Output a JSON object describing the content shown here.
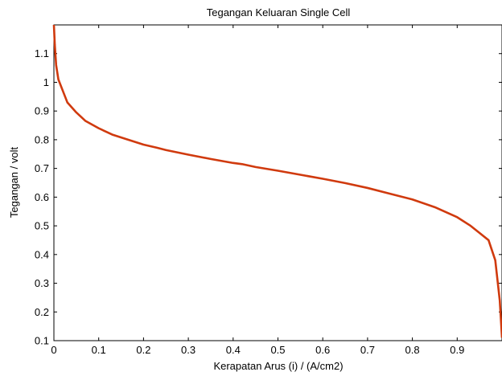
{
  "chart_data": {
    "type": "line",
    "title": "Tegangan Keluaran Single Cell",
    "xlabel": "Kerapatan Arus (i) / (A/cm2)",
    "ylabel": "Tegangan / volt",
    "xlim": [
      0,
      1
    ],
    "ylim": [
      0.1,
      1.2
    ],
    "xticks": [
      0,
      0.1,
      0.2,
      0.3,
      0.4,
      0.5,
      0.6,
      0.7,
      0.8,
      0.9
    ],
    "xtick_labels": [
      "0",
      "0.1",
      "0.2",
      "0.3",
      "0.4",
      "0.5",
      "0.6",
      "0.7",
      "0.8",
      "0.9"
    ],
    "yticks": [
      0.1,
      0.2,
      0.3,
      0.4,
      0.5,
      0.6,
      0.7,
      0.8,
      0.9,
      1.0,
      1.1
    ],
    "ytick_labels": [
      "0.1",
      "0.2",
      "0.3",
      "0.4",
      "0.5",
      "0.6",
      "0.7",
      "0.8",
      "0.9",
      "1",
      "1.1"
    ],
    "grid": false,
    "line_color": "#d03a0e",
    "series": [
      {
        "x": [
          0,
          0.002,
          0.005,
          0.01,
          0.02,
          0.03,
          0.05,
          0.07,
          0.1,
          0.13,
          0.16,
          0.2,
          0.23,
          0.25,
          0.3,
          0.35,
          0.4,
          0.42,
          0.45,
          0.5,
          0.55,
          0.6,
          0.65,
          0.7,
          0.75,
          0.8,
          0.85,
          0.9,
          0.93,
          0.95,
          0.97,
          0.985,
          0.995,
          1.0
        ],
        "y": [
          1.2,
          1.13,
          1.06,
          1.01,
          0.97,
          0.93,
          0.895,
          0.866,
          0.84,
          0.818,
          0.803,
          0.783,
          0.772,
          0.764,
          0.748,
          0.733,
          0.719,
          0.715,
          0.705,
          0.692,
          0.678,
          0.664,
          0.649,
          0.632,
          0.612,
          0.592,
          0.565,
          0.53,
          0.5,
          0.475,
          0.45,
          0.38,
          0.24,
          0.11
        ]
      }
    ]
  }
}
